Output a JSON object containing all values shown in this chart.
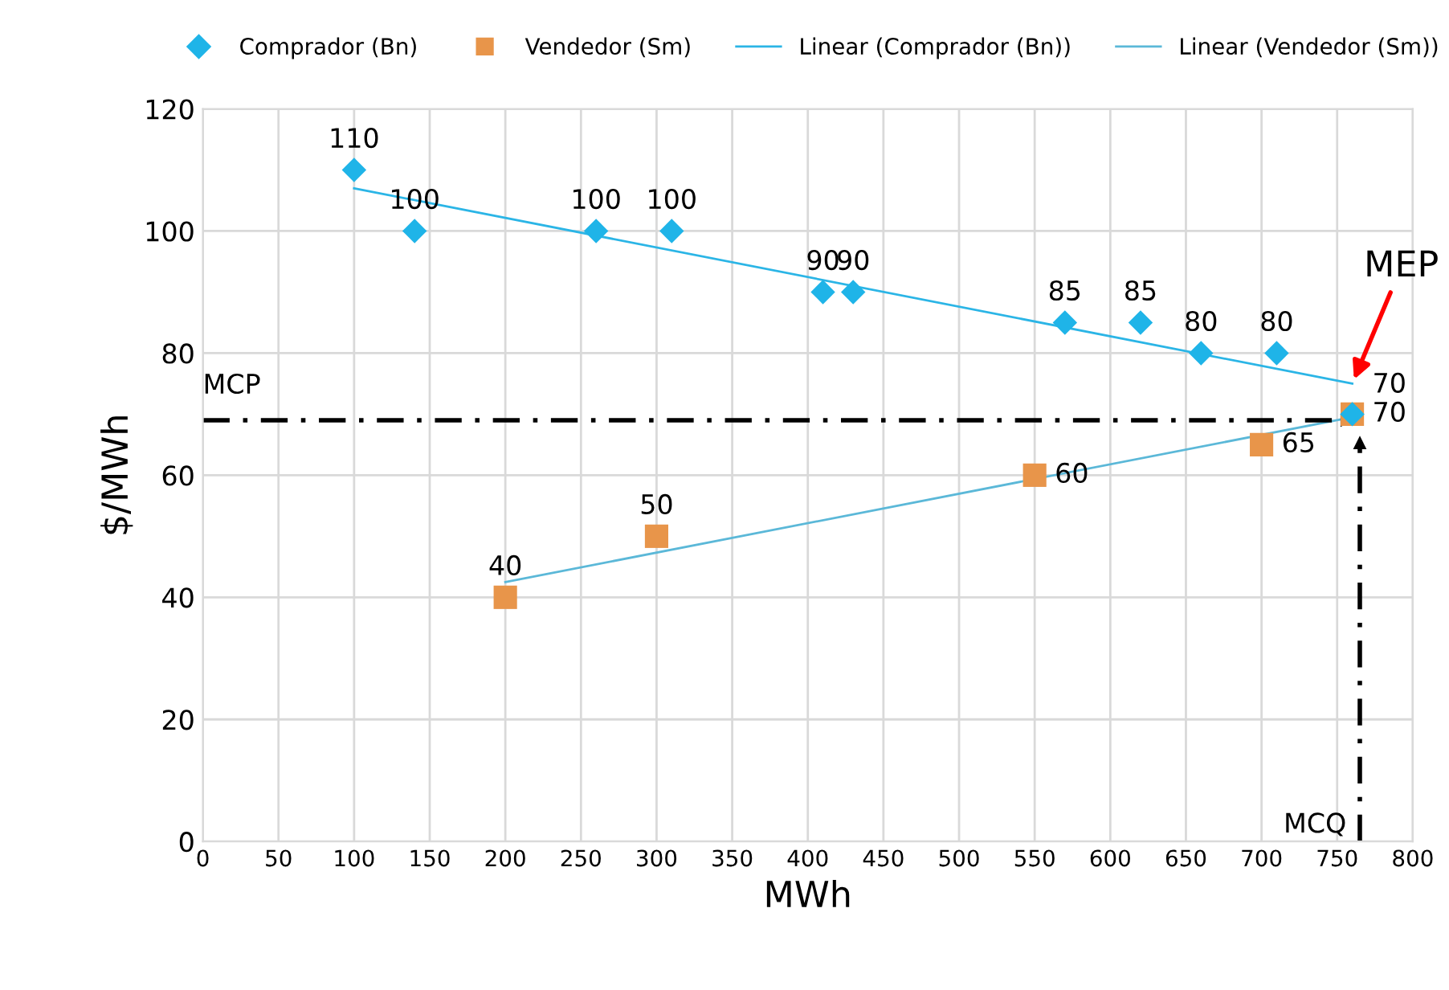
{
  "chart_data": {
    "type": "scatter",
    "xlabel": "MWh",
    "ylabel": "$/MWh",
    "xlim": [
      0,
      800
    ],
    "ylim": [
      0,
      120
    ],
    "xticks": [
      0,
      50,
      100,
      150,
      200,
      250,
      300,
      350,
      400,
      450,
      500,
      550,
      600,
      650,
      700,
      750,
      800
    ],
    "yticks": [
      0,
      20,
      40,
      60,
      80,
      100,
      120
    ],
    "grid": true,
    "legend": "top",
    "series": [
      {
        "name": "Comprador (Bn)",
        "marker": "diamond",
        "color": "#1fb4e8",
        "x": [
          100,
          140,
          260,
          310,
          410,
          430,
          570,
          620,
          660,
          710,
          760
        ],
        "values": [
          110,
          100,
          100,
          100,
          90,
          90,
          85,
          85,
          80,
          80,
          70
        ],
        "value_labels": [
          "110",
          "100",
          "100",
          "100",
          "90",
          "90",
          "85",
          "85",
          "80",
          "80",
          "70"
        ]
      },
      {
        "name": "Vendedor (Sm)",
        "marker": "square",
        "color": "#e8954a",
        "x": [
          200,
          300,
          550,
          700,
          760
        ],
        "values": [
          40,
          50,
          60,
          65,
          70
        ],
        "value_labels": [
          "40",
          "50",
          "60",
          "65",
          "70"
        ]
      },
      {
        "name": "Linear (Comprador (Bn))",
        "type": "line",
        "marker": "none",
        "color": "#2bb5e6",
        "x": [
          100,
          760
        ],
        "values": [
          107,
          75
        ]
      },
      {
        "name": "Linear (Vendedor (Sm))",
        "type": "line",
        "marker": "none",
        "color": "#5bb8d8",
        "x": [
          200,
          760
        ],
        "values": [
          42.5,
          69.5
        ]
      }
    ],
    "ref_lines": [
      {
        "axis": "y",
        "value": 69,
        "label": "MCP",
        "color": "#000000",
        "line_style": "dashed"
      },
      {
        "axis": "x",
        "value": 765,
        "label": "MCQ",
        "color": "#000000",
        "line_style": "dashed"
      }
    ],
    "annotations": [
      {
        "text": "MEP",
        "x": 760,
        "y": 75
      }
    ]
  }
}
